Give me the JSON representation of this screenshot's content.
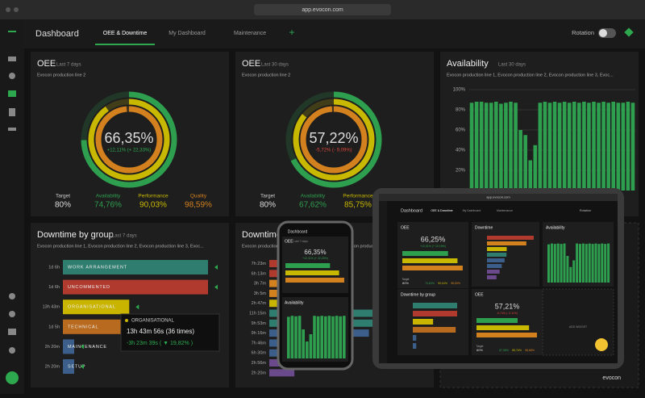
{
  "browser": {
    "url": "app.evocon.com"
  },
  "header": {
    "title": "Dashboard",
    "tabs": [
      "OEE & Downtime",
      "My Dashboard",
      "Maintenance"
    ],
    "add": "+",
    "rotation": "Rotation"
  },
  "oee_cards": [
    {
      "title": "OEE",
      "period": "Last 7 days",
      "line": "Evocon production line 2",
      "oee": "66,35%",
      "delta": "+12,11% (+ 22,33%)",
      "delta_color": "#2ea84f",
      "target_name": "Target",
      "target": "80%",
      "rings": [
        {
          "name": "Availability",
          "value": 74.76,
          "label": "74,76%",
          "color": "#2e9e4f"
        },
        {
          "name": "Performance",
          "value": 90.03,
          "label": "90,03%",
          "color": "#c9b800"
        },
        {
          "name": "Quality",
          "value": 98.59,
          "label": "98,59%",
          "color": "#d3801e"
        }
      ]
    },
    {
      "title": "OEE",
      "period": "Last 30 days",
      "line": "Evocon production line 2",
      "oee": "57,22%",
      "delta": "-5,72% (- 9,09%)",
      "delta_color": "#d9443a",
      "target_name": "Target",
      "target": "80%",
      "rings": [
        {
          "name": "Availability",
          "value": 67.62,
          "label": "67,62%",
          "color": "#2e9e4f"
        },
        {
          "name": "Performance",
          "value": 85.75,
          "label": "85,75%",
          "color": "#c9b800"
        },
        {
          "name": "Quality",
          "value": 98.9,
          "color": "#d3801e"
        }
      ]
    }
  ],
  "availability": {
    "title": "Availability",
    "period": "Last 30 days",
    "line": "Evocon production line 1, Evocon production line 2, Evocon production line 3, Evoc...",
    "chart_data": {
      "type": "bar",
      "color": "#2e9e4f",
      "ylim": [
        0,
        100
      ],
      "yticks": [
        {
          "value": 20,
          "label": "20%"
        },
        {
          "value": 40,
          "label": "40%"
        },
        {
          "value": 60,
          "label": "60%"
        },
        {
          "value": 80,
          "label": "80%"
        },
        {
          "value": 100,
          "label": "100%"
        }
      ],
      "grid": true,
      "values": [
        87,
        88,
        88,
        87,
        87,
        88,
        86,
        87,
        88,
        87,
        60,
        55,
        30,
        45,
        87,
        88,
        87,
        88,
        87,
        88,
        87,
        88,
        87,
        88,
        87,
        88,
        87,
        88,
        87,
        88,
        87,
        87,
        88,
        87
      ]
    }
  },
  "downtime": {
    "title": "Downtime by group",
    "period": "Last 7 days",
    "line": "Evocon production line 1, Evocon production line 2, Evocon production line 3, Evoc...",
    "chart_data": {
      "type": "hbar",
      "xlim": [
        0,
        1800
      ],
      "categories": [
        "WORK ARRANGEMENT",
        "UNCOMMENTED",
        "ORGANISATIONAL",
        "TECHNICAL",
        "MAINTENANCE",
        "SETUP"
      ],
      "values": [
        1800,
        1800,
        823,
        1740,
        140,
        140
      ],
      "value_labels": [
        "1d 6h",
        "1d 6h",
        "13h 43m",
        "1d 5h",
        "2h 20m",
        "2h 20m"
      ],
      "colors": [
        "#2e7d6e",
        "#b03a2e",
        "#c9b400",
        "#b86a1e",
        "#3b5f8a",
        "#3b5f8a"
      ]
    },
    "tooltip": {
      "name": "ORGANISATIONAL",
      "total": "13h 43m 56s (36 times)",
      "change": "-3h 23m 39s (  ▼ 19,82% )"
    }
  },
  "downtime2": {
    "title": "Downtime by group",
    "line": "Evocon production line 1, Evocon production line 2, Evocon production line 3, Evoc...",
    "chart_data": {
      "type": "hbar",
      "xlim": [
        0,
        675
      ],
      "values": [
        443,
        373,
        187,
        185,
        167,
        675,
        593,
        556,
        466,
        390,
        176,
        140
      ],
      "value_labels": [
        "7h 23m",
        "6h 13m",
        "3h 7m",
        "3h 5m",
        "2h 47m",
        "11h 15m",
        "9h 53m",
        "9h 16m",
        "7h 46m",
        "6h 30m",
        "2h 56m",
        "2h 20m"
      ],
      "colors": [
        "#b03a2e",
        "#b03a2e",
        "#d3801e",
        "#d3801e",
        "#c9b400",
        "#2e7d6e",
        "#2e7d6e",
        "#3b5f8a",
        "#3b5f8a",
        "#3b5f8a",
        "#6a4a8a",
        "#6a4a8a"
      ]
    }
  },
  "phone": {
    "title": "Dashboard",
    "card": "OEE",
    "period": "Last 7 days",
    "oee": "66,35%",
    "delta": "+12,11% (+ 22,33%)",
    "bars": [
      {
        "value": 74.76,
        "color": "#2e9e4f"
      },
      {
        "value": 90.03,
        "color": "#c9b800"
      },
      {
        "value": 98.59,
        "color": "#d3801e"
      }
    ],
    "availability": "Availability",
    "availability_values": [
      86,
      88,
      87,
      88,
      60,
      35,
      50,
      88,
      87,
      88,
      87,
      88,
      87,
      88,
      87,
      88
    ]
  },
  "tablet": {
    "url": "app.evocon.com",
    "title": "Dashboard",
    "tabs": [
      "OEE & Downtime",
      "My Dashboard",
      "Maintenance"
    ],
    "rotation": "Rotation",
    "oee1": {
      "title": "OEE",
      "oee": "66,25%",
      "delta": "+12,01% (+ 22,15%)",
      "target_name": "Target",
      "target": "80%",
      "bars": [
        {
          "value": 74.63,
          "label": "74,63%",
          "color": "#2e9e4f"
        },
        {
          "value": 90.04,
          "label": "90,04%",
          "color": "#c9b800"
        },
        {
          "value": 98.59,
          "label": "98,59%",
          "color": "#d3801e"
        }
      ]
    },
    "oee2": {
      "title": "OEE",
      "oee": "57,21%",
      "delta": "-5,74% (- 9,11%)",
      "target_name": "Target",
      "target": "80%",
      "bars": [
        {
          "value": 67.08,
          "label": "67,08%",
          "color": "#2e9e4f"
        },
        {
          "value": 85.76,
          "label": "85,76%",
          "color": "#c9b800"
        },
        {
          "value": 98.68,
          "label": "98,68%",
          "color": "#d3801e"
        }
      ]
    },
    "downtime": "Downtime",
    "downtime_values": [
      443,
      373,
      187,
      185,
      167,
      140,
      120,
      90
    ],
    "availability": "Availability",
    "availability_values": [
      86,
      88,
      87,
      88,
      87,
      88,
      60,
      35,
      50,
      88,
      87,
      88,
      87,
      88,
      87,
      88,
      87,
      88,
      87,
      88
    ],
    "group": "Downtime by group",
    "group_values": [
      1800,
      1800,
      823,
      1740,
      140,
      140
    ],
    "add_widget": "ADD WIDGET",
    "brand": "evocon"
  }
}
